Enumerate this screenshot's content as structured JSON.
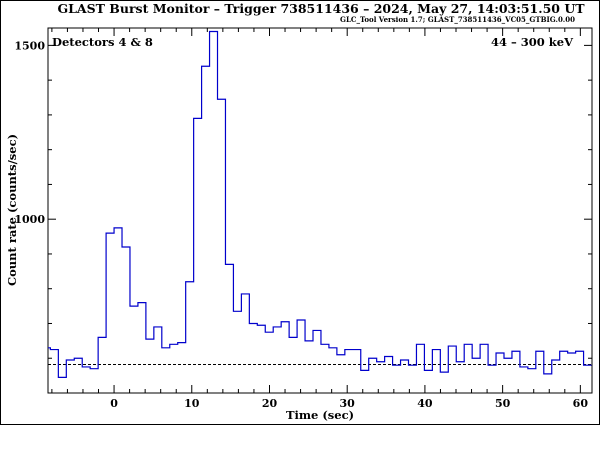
{
  "chart_data": {
    "type": "line",
    "title": "GLAST Burst Monitor  –  Trigger 738511436  –  2024, May 27, 14:03:51.50 UT",
    "subtitle": "GLC_Tool Version 1.7; GLAST_738511436_VC05_GTBIG.0.00",
    "detectors_label": "Detectors 4 & 8",
    "energy_label": "44 – 300 keV",
    "xlabel": "Time (sec)",
    "ylabel": "Count rate (counts/sec)",
    "xlim": [
      -8.5,
      61.5
    ],
    "ylim": [
      500,
      1550
    ],
    "x_ticks": [
      0,
      10,
      20,
      30,
      40,
      50,
      60
    ],
    "y_ticks": [
      1000,
      1500
    ],
    "background_level": 582,
    "series": [
      {
        "name": "",
        "color": "#0000cc",
        "style": "histogram-steps",
        "bin_width": 1.024,
        "bin_starts": [
          -9.216,
          -8.192,
          -7.168,
          -6.144,
          -5.12,
          -4.096,
          -3.072,
          -2.048,
          -1.024,
          0.0,
          1.024,
          2.048,
          3.072,
          4.096,
          5.12,
          6.144,
          7.168,
          8.192,
          9.216,
          10.24,
          11.264,
          12.288,
          13.312,
          14.336,
          15.36,
          16.384,
          17.408,
          18.432,
          19.456,
          20.48,
          21.504,
          22.528,
          23.552,
          24.576,
          25.6,
          26.624,
          27.648,
          28.672,
          29.696,
          30.72,
          31.744,
          32.768,
          33.792,
          34.816,
          35.84,
          36.864,
          37.888,
          38.912,
          39.936,
          40.96,
          41.984,
          43.008,
          44.032,
          45.056,
          46.08,
          47.104,
          48.128,
          49.152,
          50.176,
          51.2,
          52.224,
          53.248,
          54.272,
          55.296,
          56.32,
          57.344,
          58.368,
          59.392,
          60.416
        ],
        "values": [
          630,
          625,
          545,
          595,
          600,
          575,
          570,
          660,
          960,
          975,
          920,
          750,
          760,
          655,
          690,
          630,
          640,
          645,
          820,
          1290,
          1440,
          1540,
          1345,
          870,
          735,
          785,
          700,
          695,
          675,
          690,
          705,
          660,
          710,
          650,
          680,
          640,
          630,
          610,
          625,
          625,
          565,
          600,
          590,
          605,
          580,
          595,
          580,
          640,
          565,
          625,
          560,
          635,
          590,
          640,
          600,
          640,
          580,
          615,
          600,
          620,
          575,
          570,
          620,
          555,
          595,
          620,
          615,
          620,
          580
        ]
      }
    ]
  }
}
